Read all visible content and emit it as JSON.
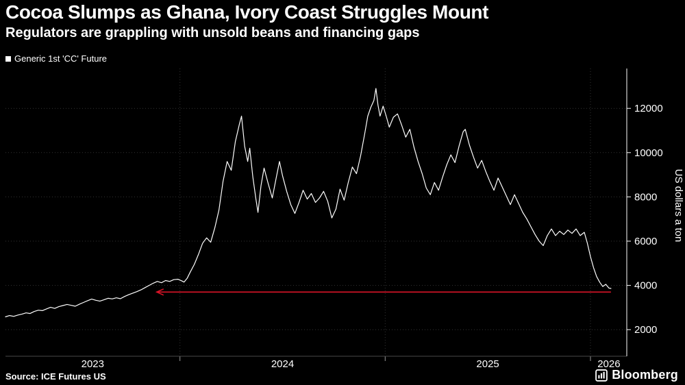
{
  "header": {
    "title": "Cocoa Slumps as Ghana, Ivory Coast Struggles Mount",
    "subtitle": "Regulators are grappling with unsold beans and financing gaps"
  },
  "legend": {
    "label": "Generic 1st 'CC' Future"
  },
  "footer": {
    "source": "Source: ICE Futures US",
    "brand": "Bloomberg"
  },
  "colors": {
    "background": "#000000",
    "line": "#ffffff",
    "grid": "#353535",
    "axis": "#ffffff",
    "text": "#ffffff",
    "arrow": "#dc1428"
  },
  "chart_data": {
    "type": "line",
    "title": "Cocoa Slumps as Ghana, Ivory Coast Struggles Mount",
    "subtitle": "Regulators are grappling with unsold beans and financing gaps",
    "ylabel": "US dollars a ton",
    "xlabel": "",
    "grid": "dotted",
    "legend_position": "top-left",
    "x_domain": [
      2023.15,
      2026.177
    ],
    "y_domain": [
      800,
      13800
    ],
    "y_ticks": [
      2000,
      4000,
      6000,
      8000,
      10000,
      12000
    ],
    "x_year_boundaries": [
      2024,
      2025,
      2026
    ],
    "x_labels": [
      {
        "text": "2023",
        "center": 2023.575
      },
      {
        "text": "2024",
        "center": 2024.5
      },
      {
        "text": "2025",
        "center": 2025.5
      },
      {
        "text": "2026",
        "center": 2026.09
      }
    ],
    "annotation": {
      "type": "arrow-left",
      "y": 3700,
      "x_from": 2026.1,
      "x_to": 2023.887,
      "color": "#dc1428"
    },
    "series": [
      {
        "name": "Generic 1st 'CC' Future",
        "color": "#ffffff",
        "points": [
          [
            2023.15,
            2580
          ],
          [
            2023.17,
            2640
          ],
          [
            2023.19,
            2600
          ],
          [
            2023.21,
            2660
          ],
          [
            2023.23,
            2700
          ],
          [
            2023.25,
            2760
          ],
          [
            2023.27,
            2730
          ],
          [
            2023.29,
            2820
          ],
          [
            2023.31,
            2880
          ],
          [
            2023.33,
            2860
          ],
          [
            2023.35,
            2940
          ],
          [
            2023.37,
            3010
          ],
          [
            2023.39,
            2960
          ],
          [
            2023.41,
            3040
          ],
          [
            2023.43,
            3090
          ],
          [
            2023.45,
            3140
          ],
          [
            2023.47,
            3100
          ],
          [
            2023.49,
            3060
          ],
          [
            2023.51,
            3150
          ],
          [
            2023.53,
            3230
          ],
          [
            2023.55,
            3310
          ],
          [
            2023.57,
            3380
          ],
          [
            2023.59,
            3330
          ],
          [
            2023.61,
            3290
          ],
          [
            2023.63,
            3350
          ],
          [
            2023.65,
            3420
          ],
          [
            2023.67,
            3390
          ],
          [
            2023.69,
            3440
          ],
          [
            2023.71,
            3400
          ],
          [
            2023.73,
            3500
          ],
          [
            2023.75,
            3580
          ],
          [
            2023.77,
            3650
          ],
          [
            2023.79,
            3720
          ],
          [
            2023.81,
            3800
          ],
          [
            2023.83,
            3900
          ],
          [
            2023.85,
            4000
          ],
          [
            2023.87,
            4100
          ],
          [
            2023.89,
            4180
          ],
          [
            2023.91,
            4120
          ],
          [
            2023.93,
            4220
          ],
          [
            2023.95,
            4180
          ],
          [
            2023.97,
            4260
          ],
          [
            2023.99,
            4280
          ],
          [
            2024.01,
            4200
          ],
          [
            2024.02,
            4150
          ],
          [
            2024.035,
            4320
          ],
          [
            2024.05,
            4600
          ],
          [
            2024.07,
            4950
          ],
          [
            2024.09,
            5400
          ],
          [
            2024.11,
            5900
          ],
          [
            2024.13,
            6150
          ],
          [
            2024.15,
            5950
          ],
          [
            2024.17,
            6600
          ],
          [
            2024.19,
            7400
          ],
          [
            2024.21,
            8700
          ],
          [
            2024.23,
            9600
          ],
          [
            2024.25,
            9200
          ],
          [
            2024.27,
            10500
          ],
          [
            2024.29,
            11300
          ],
          [
            2024.3,
            11650
          ],
          [
            2024.315,
            10300
          ],
          [
            2024.33,
            9600
          ],
          [
            2024.34,
            10200
          ],
          [
            2024.355,
            8900
          ],
          [
            2024.37,
            7900
          ],
          [
            2024.38,
            7300
          ],
          [
            2024.395,
            8500
          ],
          [
            2024.41,
            9300
          ],
          [
            2024.43,
            8600
          ],
          [
            2024.45,
            7950
          ],
          [
            2024.47,
            8900
          ],
          [
            2024.485,
            9600
          ],
          [
            2024.5,
            8950
          ],
          [
            2024.52,
            8250
          ],
          [
            2024.54,
            7650
          ],
          [
            2024.56,
            7250
          ],
          [
            2024.58,
            7750
          ],
          [
            2024.6,
            8300
          ],
          [
            2024.62,
            7900
          ],
          [
            2024.64,
            8150
          ],
          [
            2024.66,
            7750
          ],
          [
            2024.68,
            7950
          ],
          [
            2024.7,
            8250
          ],
          [
            2024.72,
            7800
          ],
          [
            2024.74,
            7050
          ],
          [
            2024.76,
            7450
          ],
          [
            2024.78,
            8350
          ],
          [
            2024.8,
            7850
          ],
          [
            2024.82,
            8650
          ],
          [
            2024.84,
            9350
          ],
          [
            2024.86,
            9050
          ],
          [
            2024.88,
            9850
          ],
          [
            2024.9,
            10850
          ],
          [
            2024.915,
            11650
          ],
          [
            2024.93,
            12050
          ],
          [
            2024.945,
            12350
          ],
          [
            2024.955,
            12900
          ],
          [
            2024.965,
            12150
          ],
          [
            2024.975,
            11650
          ],
          [
            2024.99,
            12100
          ],
          [
            2025.005,
            11650
          ],
          [
            2025.02,
            11150
          ],
          [
            2025.04,
            11600
          ],
          [
            2025.06,
            11750
          ],
          [
            2025.08,
            11250
          ],
          [
            2025.1,
            10700
          ],
          [
            2025.12,
            11050
          ],
          [
            2025.14,
            10250
          ],
          [
            2025.16,
            9600
          ],
          [
            2025.18,
            9050
          ],
          [
            2025.2,
            8400
          ],
          [
            2025.22,
            8100
          ],
          [
            2025.24,
            8650
          ],
          [
            2025.26,
            8300
          ],
          [
            2025.28,
            8900
          ],
          [
            2025.3,
            9450
          ],
          [
            2025.32,
            9900
          ],
          [
            2025.34,
            9550
          ],
          [
            2025.36,
            10300
          ],
          [
            2025.38,
            10950
          ],
          [
            2025.39,
            11050
          ],
          [
            2025.41,
            10350
          ],
          [
            2025.43,
            9800
          ],
          [
            2025.45,
            9300
          ],
          [
            2025.47,
            9650
          ],
          [
            2025.49,
            9150
          ],
          [
            2025.51,
            8700
          ],
          [
            2025.53,
            8300
          ],
          [
            2025.55,
            8850
          ],
          [
            2025.57,
            8450
          ],
          [
            2025.59,
            8050
          ],
          [
            2025.61,
            7650
          ],
          [
            2025.63,
            8100
          ],
          [
            2025.65,
            7700
          ],
          [
            2025.67,
            7300
          ],
          [
            2025.69,
            7000
          ],
          [
            2025.71,
            6650
          ],
          [
            2025.73,
            6300
          ],
          [
            2025.75,
            6000
          ],
          [
            2025.77,
            5800
          ],
          [
            2025.79,
            6250
          ],
          [
            2025.81,
            6550
          ],
          [
            2025.83,
            6250
          ],
          [
            2025.85,
            6450
          ],
          [
            2025.87,
            6300
          ],
          [
            2025.89,
            6500
          ],
          [
            2025.91,
            6350
          ],
          [
            2025.93,
            6550
          ],
          [
            2025.95,
            6250
          ],
          [
            2025.97,
            6400
          ],
          [
            2025.985,
            5900
          ],
          [
            2026.0,
            5300
          ],
          [
            2026.015,
            4800
          ],
          [
            2026.03,
            4400
          ],
          [
            2026.045,
            4150
          ],
          [
            2026.06,
            3950
          ],
          [
            2026.075,
            4050
          ],
          [
            2026.09,
            3880
          ],
          [
            2026.1,
            3860
          ]
        ]
      }
    ]
  }
}
